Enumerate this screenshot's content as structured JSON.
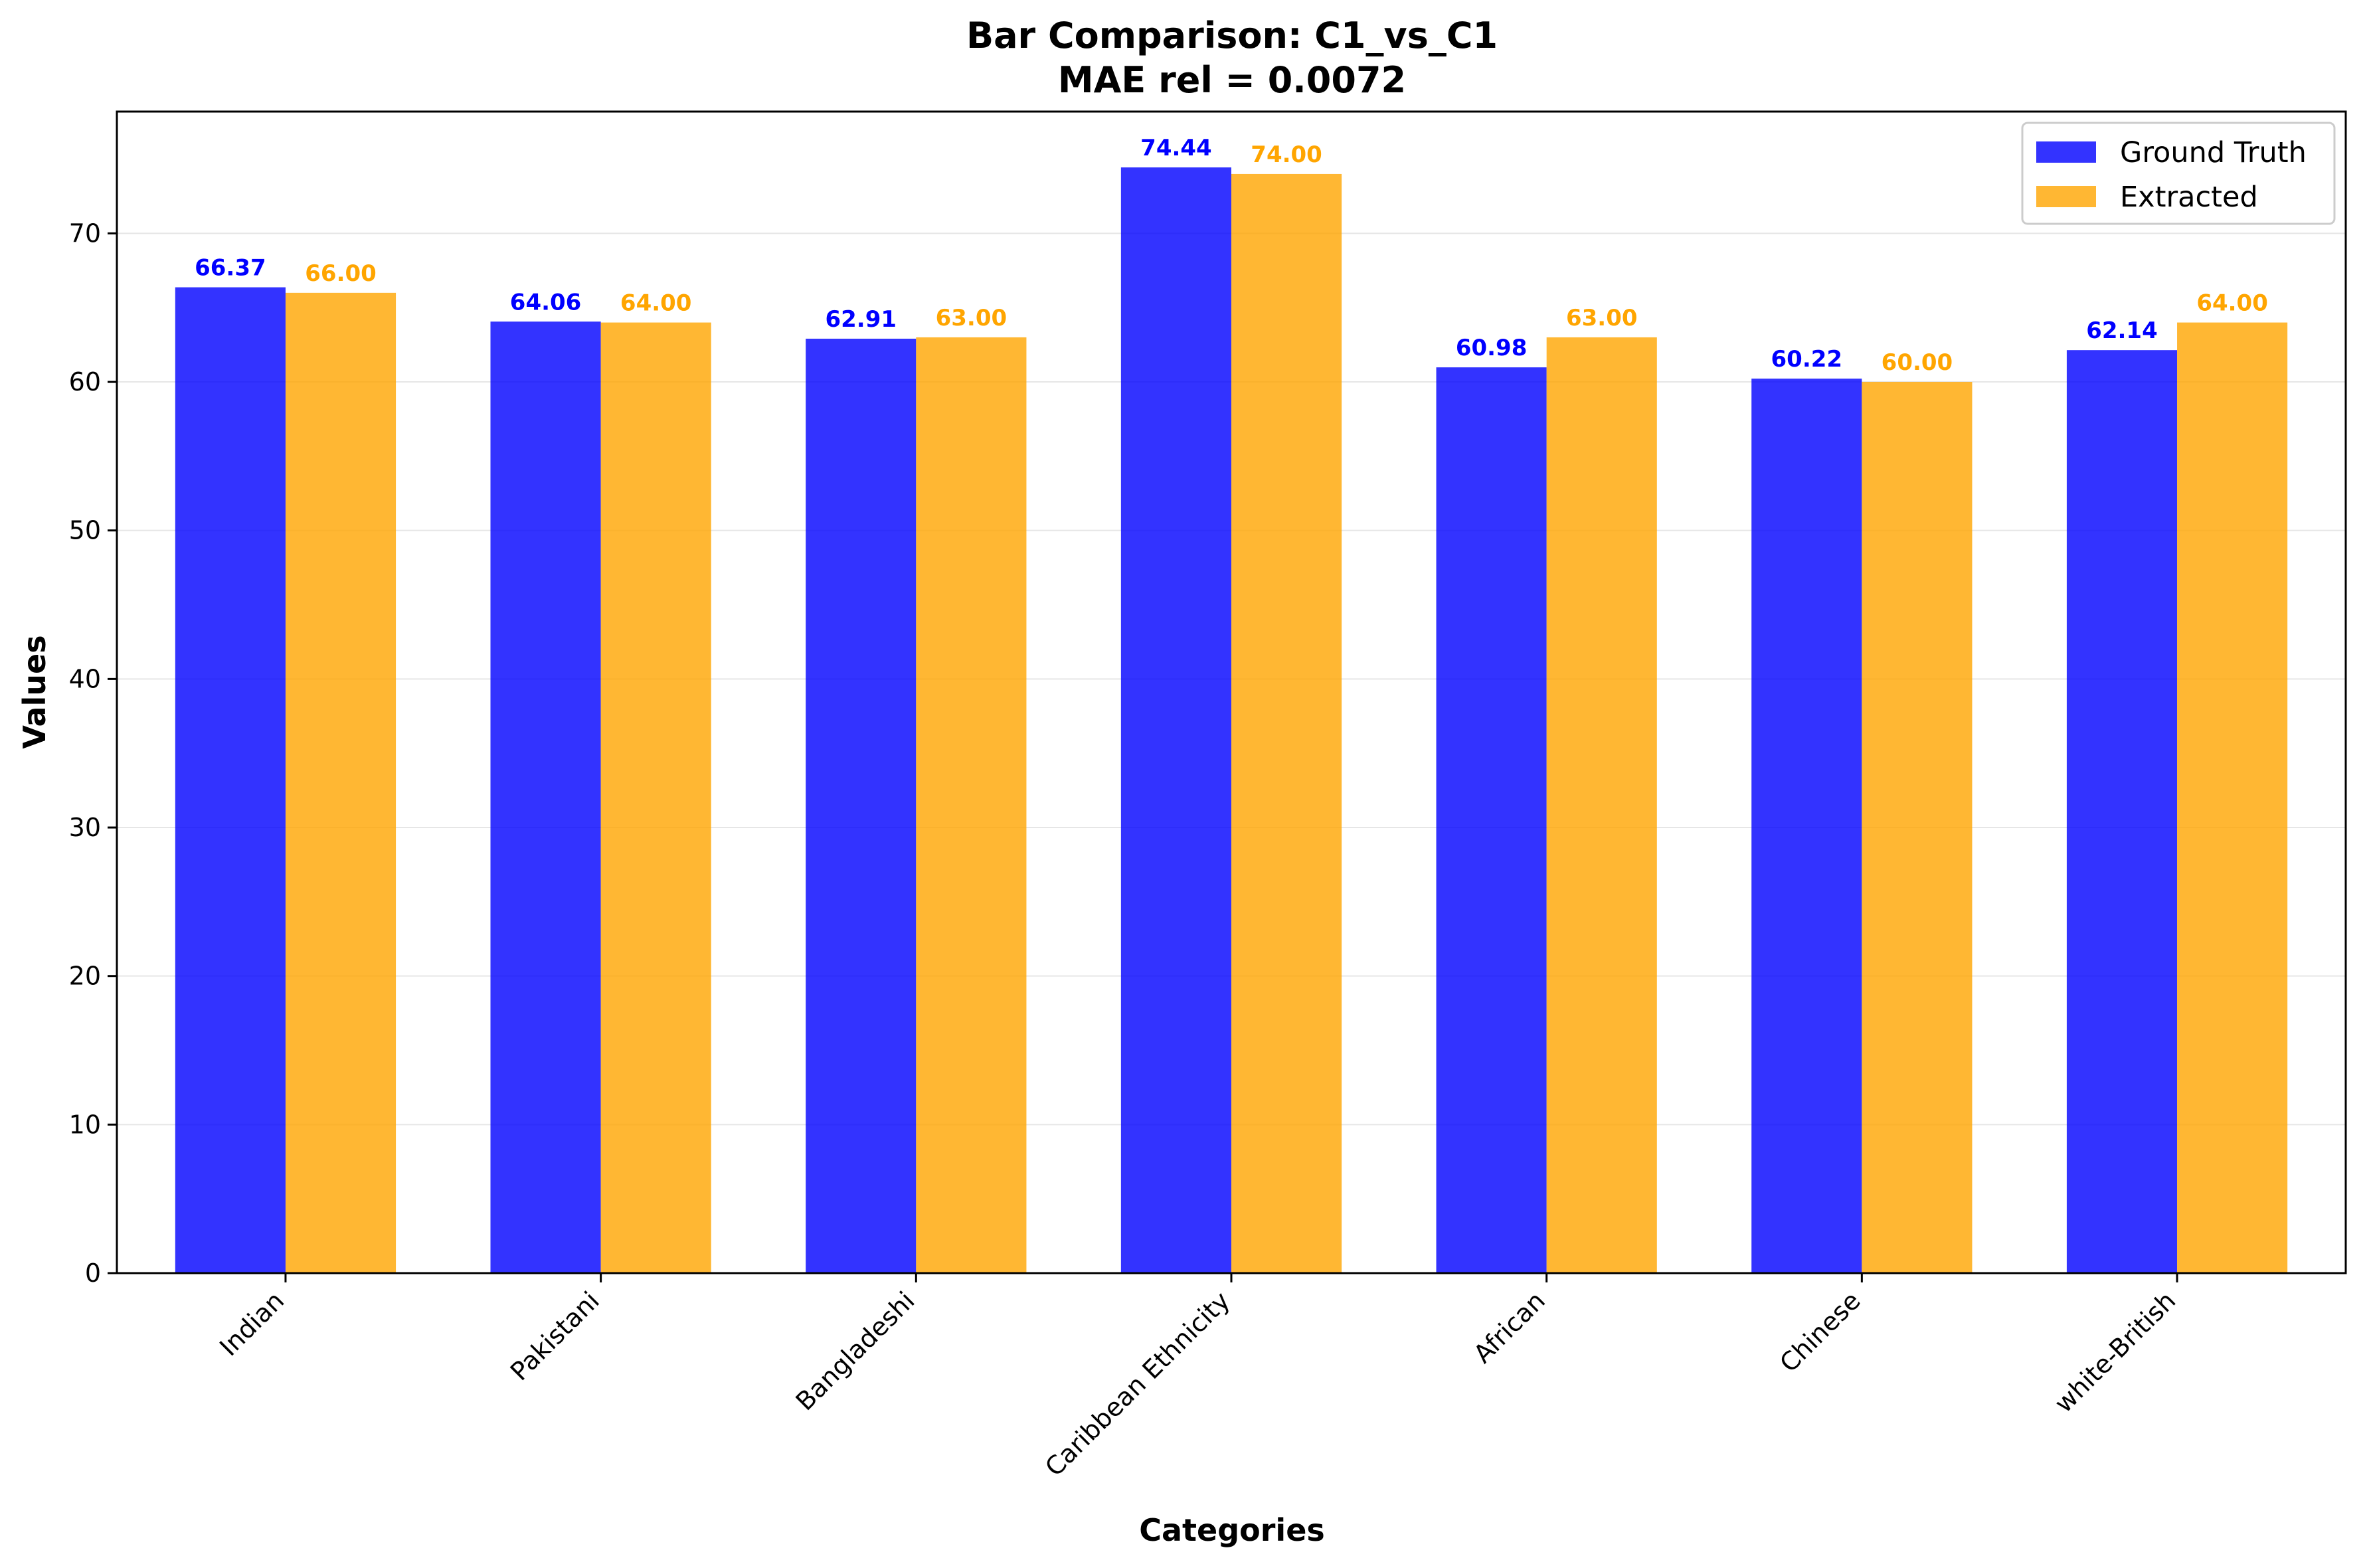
{
  "chart_data": {
    "type": "bar",
    "title": "Bar Comparison: C1_vs_C1",
    "subtitle": "MAE rel = 0.0072",
    "xlabel": "Categories",
    "ylabel": "Values",
    "categories": [
      "Indian",
      "Pakistani",
      "Bangladeshi",
      "Caribbean Ethnicity",
      "African",
      "Chinese",
      "white-British"
    ],
    "series": [
      {
        "name": "Ground Truth",
        "color": "#0000ff",
        "values": [
          66.37,
          64.06,
          62.91,
          74.44,
          60.98,
          60.22,
          62.14
        ],
        "labels": [
          "66.37",
          "64.06",
          "62.91",
          "74.44",
          "60.98",
          "60.22",
          "62.14"
        ]
      },
      {
        "name": "Extracted",
        "color": "#ffa500",
        "values": [
          66.0,
          64.0,
          63.0,
          74.0,
          63.0,
          60.0,
          64.0
        ],
        "labels": [
          "66.00",
          "64.00",
          "63.00",
          "74.00",
          "63.00",
          "60.00",
          "64.00"
        ]
      }
    ],
    "ylim": [
      0,
      78.2
    ],
    "yticks": [
      0,
      10,
      20,
      30,
      40,
      50,
      60,
      70
    ],
    "grid": true,
    "legend_position": "top-right"
  }
}
